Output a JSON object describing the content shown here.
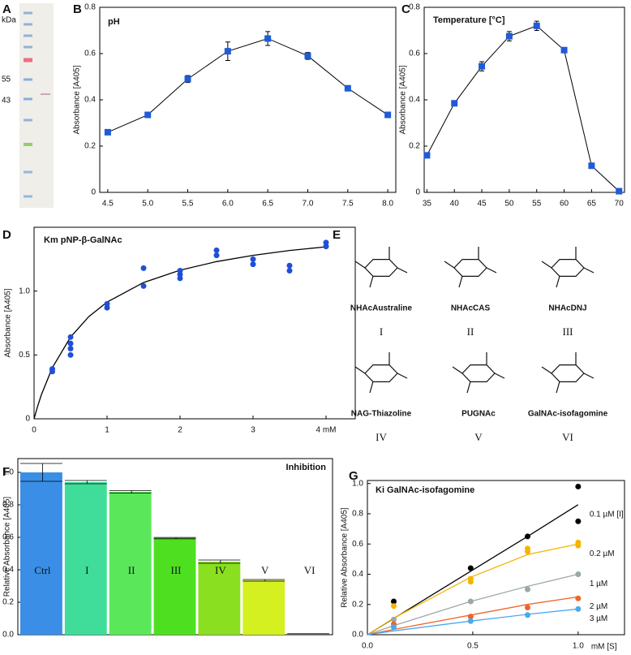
{
  "gel": {
    "label": "A",
    "unit": "kDa",
    "markers": [
      55,
      43
    ]
  },
  "structures": {
    "label": "E",
    "items": [
      {
        "name": "NHAcAustraline",
        "numeral": "I"
      },
      {
        "name": "NHAcCAS",
        "numeral": "II"
      },
      {
        "name": "NHAcDNJ",
        "numeral": "III"
      },
      {
        "name": "NAG-Thiazoline",
        "numeral": "IV"
      },
      {
        "name": "PUGNAc",
        "numeral": "V"
      },
      {
        "name": "GalNAc-isofagomine",
        "numeral": "VI"
      }
    ]
  },
  "chart_data": [
    {
      "type": "line",
      "label": "B",
      "title": "pH",
      "ylabel": "Absorbance [A405]",
      "color": "#1f5bd6",
      "x": [
        4.5,
        5.0,
        5.5,
        6.0,
        6.5,
        7.0,
        7.5,
        8.0
      ],
      "values": [
        0.26,
        0.335,
        0.49,
        0.61,
        0.665,
        0.59,
        0.45,
        0.335
      ],
      "errors": [
        0.01,
        0.005,
        0.015,
        0.04,
        0.03,
        0.015,
        0.005,
        0.005
      ],
      "xlim": [
        4.4,
        8.1
      ],
      "ylim": [
        0,
        0.8
      ],
      "xticks": [
        4.5,
        {
          "value": 5,
          "label": "5.0"
        },
        5.5,
        {
          "value": 6,
          "label": "6.0"
        },
        6.5,
        {
          "value": 7,
          "label": "7.0"
        },
        7.5,
        {
          "value": 8,
          "label": "8.0"
        }
      ],
      "yticks": [
        0,
        0.2,
        0.4,
        0.6,
        0.8
      ]
    },
    {
      "type": "line",
      "label": "C",
      "title": "Temperature [°C]",
      "ylabel": "Absorbance [A405]",
      "color": "#1f5bd6",
      "x": [
        35,
        40,
        45,
        50,
        55,
        60,
        65,
        70
      ],
      "values": [
        0.16,
        0.385,
        0.545,
        0.675,
        0.72,
        0.615,
        0.115,
        0.005
      ],
      "errors": [
        0.01,
        0.005,
        0.02,
        0.02,
        0.02,
        0.01,
        0.005,
        0.005
      ],
      "xlim": [
        34.5,
        71
      ],
      "ylim": [
        0,
        0.8
      ],
      "xticks": [
        35,
        40,
        45,
        50,
        55,
        60,
        65,
        70
      ],
      "yticks": [
        0,
        0.2,
        0.4,
        0.6,
        0.8
      ]
    },
    {
      "type": "scatter",
      "label": "D",
      "title": "Km pNP-β-GalNAc",
      "ylabel": "Absorbance [A405]",
      "series": [
        {
          "color": "#1f4fd8",
          "fit_color": "#000000",
          "x": [
            0.25,
            0.25,
            0.5,
            0.5,
            0.5,
            0.5,
            1,
            1,
            1.5,
            1.5,
            2,
            2,
            2,
            2.5,
            2.5,
            3,
            3,
            3.5,
            3.5,
            4,
            4
          ],
          "values": [
            0.37,
            0.39,
            0.5,
            0.55,
            0.59,
            0.64,
            0.87,
            0.9,
            1.04,
            1.18,
            1.1,
            1.13,
            1.16,
            1.28,
            1.32,
            1.21,
            1.25,
            1.16,
            1.2,
            1.35,
            1.38
          ],
          "fit_x": [
            0,
            0.05,
            0.1,
            0.25,
            0.5,
            0.75,
            1,
            1.5,
            2,
            2.5,
            3,
            3.5,
            4
          ],
          "fit": [
            0,
            0.1,
            0.188,
            0.4,
            0.64,
            0.8,
            0.914,
            1.067,
            1.164,
            1.231,
            1.28,
            1.318,
            1.347
          ]
        }
      ],
      "xlim": [
        0,
        4.4
      ],
      "ylim": [
        0,
        1.5
      ],
      "xticks": [
        0,
        1,
        2,
        3,
        {
          "value": 4,
          "label": "4 mM"
        }
      ],
      "yticks": [
        0,
        0.5,
        {
          "value": 1,
          "label": "1.0"
        }
      ]
    },
    {
      "type": "bar",
      "label": "F",
      "title": "Inhibition",
      "ylabel": "Relative Absorbance [A405]",
      "categories": [
        "Ctrl",
        "I",
        "II",
        "III",
        "IV",
        "V",
        "VI"
      ],
      "values": [
        1.0,
        0.94,
        0.88,
        0.595,
        0.45,
        0.335,
        0.005
      ],
      "errors": [
        0.055,
        0.01,
        0.008,
        0.004,
        0.01,
        0.005,
        0.001
      ],
      "colors": [
        "#3a8ee6",
        "#3fdc9a",
        "#5ae85a",
        "#4ee020",
        "#8ae020",
        "#d4f020",
        "#f4f4f4"
      ],
      "ylim": [
        0,
        1.085
      ],
      "yticks": [
        {
          "value": 0,
          "label": "0.0"
        },
        0.2,
        0.4,
        0.6,
        0.8,
        {
          "value": 1,
          "label": "1.0"
        }
      ]
    },
    {
      "type": "scatter",
      "label": "G",
      "title": "Ki GalNAc-isofagomine",
      "ylabel": "Relative Absorbance [A405]",
      "xlabel": "mM [S]",
      "series": [
        {
          "name": "0.1 µM [I]",
          "color": "#000000",
          "x": [
            0.125,
            0.49,
            0.76,
            1.0,
            1.0
          ],
          "values": [
            0.22,
            0.44,
            0.65,
            0.75,
            0.98
          ],
          "fit_x": [
            0,
            0.125,
            0.49,
            0.76,
            1.0
          ],
          "fit": [
            0,
            0.108,
            0.42,
            0.65,
            0.86
          ]
        },
        {
          "name": "0.2 µM",
          "color": "#f5b400",
          "x": [
            0.125,
            0.49,
            0.49,
            0.76,
            0.76,
            1.0,
            1.0
          ],
          "values": [
            0.19,
            0.35,
            0.37,
            0.55,
            0.57,
            0.59,
            0.61
          ],
          "fit_x": [
            0,
            0.125,
            0.49,
            0.76,
            1.0
          ],
          "fit": [
            0,
            0.11,
            0.38,
            0.53,
            0.6
          ]
        },
        {
          "name": "1 µM",
          "color": "#9aa9a4",
          "x": [
            0.125,
            0.49,
            0.76,
            1.0
          ],
          "values": [
            0.1,
            0.22,
            0.3,
            0.4
          ],
          "fit_x": [
            0,
            0.125,
            0.49,
            0.76,
            1.0
          ],
          "fit": [
            0,
            0.06,
            0.22,
            0.32,
            0.4
          ]
        },
        {
          "name": "2 µM",
          "color": "#f0642a",
          "x": [
            0.125,
            0.49,
            0.76,
            1.0
          ],
          "values": [
            0.07,
            0.12,
            0.18,
            0.24
          ],
          "fit_x": [
            0,
            0.125,
            0.49,
            0.76,
            1.0
          ],
          "fit": [
            0,
            0.035,
            0.13,
            0.2,
            0.25
          ]
        },
        {
          "name": "3 µM",
          "color": "#4aa8f0",
          "x": [
            0.125,
            0.49,
            0.76,
            1.0
          ],
          "values": [
            0.05,
            0.09,
            0.13,
            0.17
          ],
          "fit_x": [
            0,
            0.125,
            0.49,
            0.76,
            1.0
          ],
          "fit": [
            0,
            0.025,
            0.09,
            0.135,
            0.17
          ]
        }
      ],
      "xlim": [
        0,
        1.22
      ],
      "ylim": [
        0,
        1.02
      ],
      "xticks": [
        {
          "value": 0,
          "label": "0.0"
        },
        0.5,
        {
          "value": 1,
          "label": "1.0"
        }
      ],
      "yticks": [
        {
          "value": 0,
          "label": "0.0"
        },
        0.2,
        0.4,
        0.6,
        0.8,
        {
          "value": 1,
          "label": "1.0"
        }
      ]
    }
  ]
}
